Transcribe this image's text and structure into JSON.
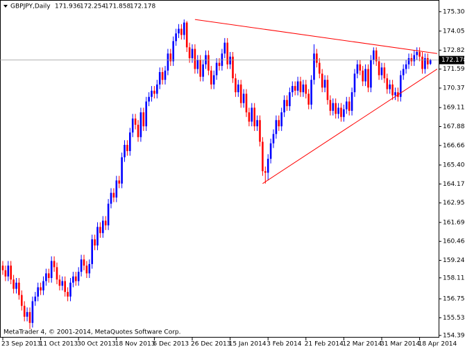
{
  "chart_data": {
    "type": "candlestick",
    "symbol": "GBPJPY,Daily",
    "copyright": "MetaTrader 4, © 2001-2014, MetaQuotes Software Corp.",
    "up_color": "#0000ff",
    "down_color": "#ff0000",
    "trendline_color": "#ff0000",
    "grid": false,
    "categories": [
      "23 Sep 2013",
      null,
      null,
      null,
      null,
      null,
      null,
      null,
      null,
      null,
      null,
      null,
      null,
      null,
      "11 Oct 2013",
      null,
      null,
      null,
      null,
      null,
      null,
      null,
      null,
      null,
      null,
      null,
      null,
      null,
      "30 Oct 2013",
      null,
      null,
      null,
      null,
      null,
      null,
      null,
      null,
      null,
      null,
      null,
      null,
      null,
      "18 Nov 2013",
      null,
      null,
      null,
      null,
      null,
      null,
      null,
      null,
      null,
      null,
      null,
      null,
      null,
      "6 Dec 2013",
      null,
      null,
      null,
      null,
      null,
      null,
      null,
      null,
      null,
      null,
      null,
      null,
      null,
      "26 Dec 2013",
      null,
      null,
      null,
      null,
      null,
      null,
      null,
      null,
      null,
      null,
      null,
      null,
      null,
      "15 Jan 2014",
      null,
      null,
      null,
      null,
      null,
      null,
      null,
      null,
      null,
      null,
      null,
      null,
      null,
      "3 Feb 2014",
      null,
      null,
      null,
      null,
      null,
      null,
      null,
      null,
      null,
      null,
      null,
      null,
      null,
      "21 Feb 2014",
      null,
      null,
      null,
      null,
      null,
      null,
      null,
      null,
      null,
      null,
      null,
      null,
      null,
      "12 Mar 2014",
      null,
      null,
      null,
      null,
      null,
      null,
      null,
      null,
      null,
      null,
      null,
      null,
      null,
      "31 Mar 2014",
      null,
      null,
      null,
      null,
      null,
      null,
      null,
      null,
      null,
      null,
      null,
      null,
      null,
      "18 Apr 2014",
      null,
      null,
      null,
      null
    ],
    "ohlc": [
      [
        158.9,
        159.2,
        158.3,
        158.6
      ],
      [
        158.6,
        158.9,
        157.9,
        158.2
      ],
      [
        158.2,
        159.2,
        157.9,
        158.9
      ],
      [
        158.9,
        159.2,
        157.7,
        158.0
      ],
      [
        158.0,
        158.3,
        157.1,
        157.4
      ],
      [
        157.4,
        158.1,
        157.1,
        157.8
      ],
      [
        157.8,
        158.1,
        156.7,
        157.0
      ],
      [
        157.0,
        157.3,
        156.0,
        156.3
      ],
      [
        156.3,
        156.6,
        155.3,
        155.6
      ],
      [
        155.6,
        156.2,
        155.3,
        155.9
      ],
      [
        155.9,
        156.2,
        154.8,
        155.2
      ],
      [
        155.2,
        156.9,
        154.9,
        156.6
      ],
      [
        156.6,
        157.2,
        156.3,
        156.9
      ],
      [
        156.9,
        157.8,
        156.6,
        157.5
      ],
      [
        157.5,
        157.8,
        157.0,
        157.3
      ],
      [
        157.3,
        158.2,
        157.0,
        157.9
      ],
      [
        157.9,
        158.7,
        157.6,
        158.4
      ],
      [
        158.4,
        158.7,
        157.8,
        158.1
      ],
      [
        158.1,
        159.5,
        157.8,
        159.2
      ],
      [
        159.2,
        159.5,
        158.5,
        158.8
      ],
      [
        158.8,
        159.1,
        157.7,
        158.0
      ],
      [
        158.0,
        158.3,
        157.3,
        157.6
      ],
      [
        157.6,
        158.2,
        157.3,
        157.9
      ],
      [
        157.9,
        158.2,
        156.9,
        157.2
      ],
      [
        157.2,
        157.5,
        156.6,
        156.9
      ],
      [
        156.9,
        158.1,
        156.6,
        157.8
      ],
      [
        157.8,
        158.5,
        157.5,
        158.2
      ],
      [
        158.2,
        158.5,
        157.6,
        157.9
      ],
      [
        157.9,
        158.8,
        157.6,
        158.5
      ],
      [
        158.5,
        159.6,
        158.2,
        159.3
      ],
      [
        159.3,
        159.6,
        158.6,
        158.9
      ],
      [
        158.9,
        159.2,
        158.1,
        158.4
      ],
      [
        158.4,
        159.3,
        158.1,
        159.0
      ],
      [
        159.0,
        160.9,
        158.7,
        160.6
      ],
      [
        160.6,
        160.9,
        159.9,
        160.2
      ],
      [
        160.2,
        161.7,
        159.9,
        161.4
      ],
      [
        161.4,
        161.7,
        160.7,
        161.0
      ],
      [
        161.0,
        162.1,
        160.7,
        161.8
      ],
      [
        161.8,
        162.1,
        161.2,
        161.5
      ],
      [
        161.5,
        163.2,
        161.2,
        162.9
      ],
      [
        162.9,
        163.9,
        162.6,
        163.6
      ],
      [
        163.6,
        163.9,
        163.0,
        163.3
      ],
      [
        163.3,
        164.7,
        163.0,
        164.4
      ],
      [
        164.4,
        164.7,
        163.9,
        164.2
      ],
      [
        164.2,
        166.2,
        163.9,
        165.9
      ],
      [
        165.9,
        167.0,
        165.6,
        166.7
      ],
      [
        166.7,
        167.0,
        166.0,
        166.3
      ],
      [
        166.3,
        167.8,
        166.0,
        167.5
      ],
      [
        167.5,
        168.7,
        167.2,
        168.4
      ],
      [
        168.4,
        168.7,
        167.7,
        168.0
      ],
      [
        168.0,
        168.3,
        166.9,
        167.2
      ],
      [
        167.2,
        169.1,
        166.9,
        168.8
      ],
      [
        168.8,
        169.1,
        167.6,
        167.9
      ],
      [
        167.9,
        169.8,
        167.6,
        169.5
      ],
      [
        169.5,
        170.1,
        169.2,
        169.8
      ],
      [
        169.8,
        170.5,
        169.5,
        170.2
      ],
      [
        170.2,
        170.5,
        169.7,
        170.0
      ],
      [
        170.0,
        170.9,
        169.7,
        170.6
      ],
      [
        170.6,
        171.7,
        170.3,
        171.4
      ],
      [
        171.4,
        171.7,
        170.6,
        170.9
      ],
      [
        170.9,
        171.8,
        170.6,
        171.5
      ],
      [
        171.5,
        172.9,
        171.2,
        172.6
      ],
      [
        172.6,
        172.9,
        171.8,
        172.1
      ],
      [
        172.1,
        173.7,
        171.8,
        173.4
      ],
      [
        173.4,
        174.2,
        173.1,
        173.9
      ],
      [
        173.9,
        174.5,
        173.6,
        174.2
      ],
      [
        174.2,
        174.5,
        173.5,
        173.8
      ],
      [
        173.8,
        174.8,
        173.5,
        174.6
      ],
      [
        174.6,
        174.7,
        172.7,
        173.0
      ],
      [
        173.0,
        173.3,
        172.0,
        172.3
      ],
      [
        172.3,
        173.2,
        172.0,
        172.9
      ],
      [
        172.9,
        173.2,
        171.3,
        171.6
      ],
      [
        171.6,
        172.5,
        171.3,
        172.2
      ],
      [
        172.2,
        172.5,
        170.8,
        171.1
      ],
      [
        171.1,
        172.2,
        170.8,
        171.9
      ],
      [
        171.9,
        172.8,
        171.6,
        172.5
      ],
      [
        172.5,
        172.8,
        171.2,
        171.5
      ],
      [
        171.5,
        171.8,
        170.3,
        170.6
      ],
      [
        170.6,
        171.5,
        170.3,
        171.2
      ],
      [
        171.2,
        172.3,
        170.9,
        172.0
      ],
      [
        172.0,
        172.3,
        171.5,
        171.8
      ],
      [
        171.8,
        172.9,
        171.5,
        172.6
      ],
      [
        172.6,
        173.6,
        172.3,
        173.3
      ],
      [
        173.3,
        173.6,
        171.6,
        171.9
      ],
      [
        171.9,
        172.7,
        171.6,
        172.4
      ],
      [
        172.4,
        172.7,
        170.7,
        171.0
      ],
      [
        171.0,
        171.3,
        169.8,
        170.1
      ],
      [
        170.1,
        170.9,
        169.8,
        170.6
      ],
      [
        170.6,
        170.9,
        169.1,
        169.4
      ],
      [
        169.4,
        170.3,
        169.1,
        170.0
      ],
      [
        170.0,
        170.3,
        168.5,
        168.8
      ],
      [
        168.8,
        169.1,
        167.9,
        168.2
      ],
      [
        168.2,
        169.4,
        167.9,
        169.1
      ],
      [
        169.1,
        169.4,
        167.6,
        167.9
      ],
      [
        167.9,
        168.6,
        167.6,
        168.3
      ],
      [
        168.3,
        168.6,
        166.6,
        166.9
      ],
      [
        166.9,
        167.2,
        164.7,
        165.0
      ],
      [
        165.0,
        165.3,
        164.2,
        164.9
      ],
      [
        164.9,
        166.1,
        164.4,
        165.8
      ],
      [
        165.8,
        167.1,
        165.5,
        166.8
      ],
      [
        166.8,
        167.7,
        166.5,
        167.4
      ],
      [
        167.4,
        168.6,
        167.1,
        168.3
      ],
      [
        168.3,
        168.6,
        167.6,
        167.9
      ],
      [
        167.9,
        169.1,
        167.6,
        168.8
      ],
      [
        168.8,
        169.9,
        168.5,
        169.6
      ],
      [
        169.6,
        169.9,
        168.9,
        169.2
      ],
      [
        169.2,
        170.4,
        168.9,
        170.1
      ],
      [
        170.1,
        170.8,
        169.8,
        170.5
      ],
      [
        170.5,
        170.8,
        169.9,
        170.2
      ],
      [
        170.2,
        171.1,
        169.9,
        170.8
      ],
      [
        170.8,
        171.1,
        169.8,
        170.1
      ],
      [
        170.1,
        170.9,
        169.8,
        170.6
      ],
      [
        170.6,
        170.9,
        169.7,
        170.0
      ],
      [
        170.0,
        170.3,
        169.0,
        169.3
      ],
      [
        169.3,
        171.2,
        169.0,
        170.9
      ],
      [
        170.9,
        173.2,
        170.6,
        172.6
      ],
      [
        172.6,
        172.9,
        171.7,
        172.0
      ],
      [
        172.0,
        172.3,
        171.0,
        171.3
      ],
      [
        171.3,
        171.6,
        170.1,
        170.4
      ],
      [
        170.4,
        171.2,
        170.1,
        170.9
      ],
      [
        170.9,
        171.2,
        169.3,
        169.6
      ],
      [
        169.6,
        169.9,
        168.6,
        168.9
      ],
      [
        168.9,
        169.7,
        168.6,
        169.4
      ],
      [
        169.4,
        169.7,
        168.4,
        168.7
      ],
      [
        168.7,
        169.4,
        168.4,
        169.1
      ],
      [
        169.1,
        169.4,
        168.2,
        168.5
      ],
      [
        168.5,
        169.3,
        168.2,
        169.0
      ],
      [
        169.0,
        169.8,
        168.7,
        169.5
      ],
      [
        169.5,
        169.8,
        168.6,
        168.9
      ],
      [
        168.9,
        170.4,
        168.6,
        170.1
      ],
      [
        170.1,
        171.6,
        169.8,
        171.3
      ],
      [
        171.3,
        172.2,
        171.0,
        171.9
      ],
      [
        171.9,
        172.2,
        171.2,
        171.5
      ],
      [
        171.5,
        171.8,
        170.5,
        170.8
      ],
      [
        170.8,
        171.9,
        170.5,
        171.6
      ],
      [
        171.6,
        171.9,
        170.1,
        170.4
      ],
      [
        170.4,
        172.5,
        170.1,
        172.2
      ],
      [
        172.2,
        173.0,
        171.9,
        172.8
      ],
      [
        172.8,
        173.0,
        171.8,
        172.1
      ],
      [
        172.1,
        172.4,
        170.9,
        171.2
      ],
      [
        171.2,
        172.0,
        170.9,
        171.7
      ],
      [
        171.7,
        172.0,
        170.7,
        171.0
      ],
      [
        171.0,
        171.3,
        170.0,
        170.3
      ],
      [
        170.3,
        170.9,
        170.0,
        170.6
      ],
      [
        170.6,
        170.9,
        169.6,
        169.9
      ],
      [
        169.9,
        170.4,
        169.6,
        170.1
      ],
      [
        170.1,
        170.4,
        169.5,
        169.8
      ],
      [
        169.8,
        171.5,
        169.5,
        171.2
      ],
      [
        171.2,
        171.9,
        170.9,
        171.6
      ],
      [
        171.6,
        172.2,
        171.3,
        171.9
      ],
      [
        171.9,
        172.6,
        171.6,
        172.3
      ],
      [
        172.3,
        172.6,
        171.8,
        172.1
      ],
      [
        172.1,
        172.8,
        171.8,
        172.5
      ],
      [
        172.5,
        173.0,
        172.2,
        172.7
      ],
      [
        172.7,
        173.0,
        172.1,
        172.4
      ],
      [
        172.4,
        172.7,
        171.3,
        171.6
      ],
      [
        171.6,
        172.6,
        171.3,
        172.3
      ],
      [
        172.3,
        172.6,
        171.6,
        171.9
      ],
      [
        171.936,
        172.254,
        171.858,
        172.178
      ]
    ],
    "ylim": [
      154.25,
      175.7
    ],
    "yticks": [
      175.305,
      {
        "value": 174.05,
        "label": "174.050"
      },
      {
        "value": 172.82,
        "label": "172.820"
      },
      171.595,
      {
        "value": 170.37,
        "label": "170.370"
      },
      {
        "value": 169.11,
        "label": "169.110"
      },
      167.885,
      {
        "value": 166.66,
        "label": "166.660"
      },
      {
        "value": 165.4,
        "label": "165.400"
      },
      164.175,
      {
        "value": 162.95,
        "label": "162.950"
      },
      {
        "value": 161.69,
        "label": "161.690"
      },
      160.465,
      {
        "value": 159.24,
        "label": "159.240"
      },
      {
        "value": 158.11,
        "label": "158.110"
      },
      156.755,
      {
        "value": 155.53,
        "label": "155.530"
      },
      {
        "value": 154.39,
        "label": "154.390"
      }
    ],
    "trendlines": [
      {
        "x": [
          71,
          160.5
        ],
        "y": [
          174.8,
          172.6
        ]
      },
      {
        "x": [
          96,
          160.5
        ],
        "y": [
          164.2,
          171.6
        ]
      }
    ]
  }
}
